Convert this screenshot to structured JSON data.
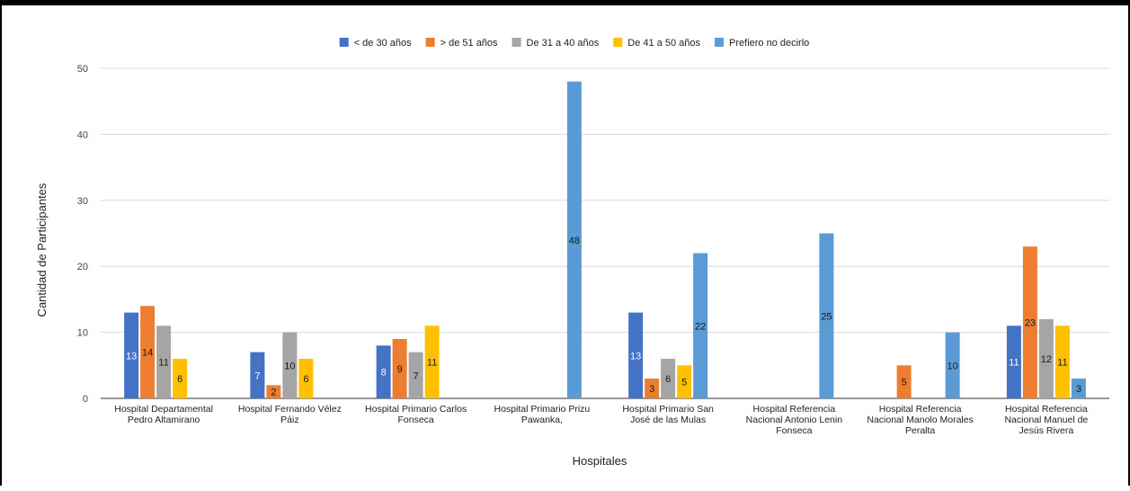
{
  "chart_data": {
    "type": "bar",
    "xlabel": "Hospitales",
    "ylabel": "Cantidad de Participantes",
    "ylim": [
      0,
      50
    ],
    "yticks": [
      0,
      10,
      20,
      30,
      40,
      50
    ],
    "grid": true,
    "legend_position": "top",
    "categories": [
      [
        "Hospital Departamental",
        "Pedro Altamirano"
      ],
      [
        "Hospital Fernando Vélez",
        "Páiz"
      ],
      [
        "Hospital Primario Carlos",
        "Fonseca"
      ],
      [
        "Hospital Primario Prizu",
        "Pawanka,"
      ],
      [
        "Hospital Primario San",
        "José de las Mulas"
      ],
      [
        "Hospital Referencia",
        "Nacional Antonio Lenin",
        "Fonseca"
      ],
      [
        "Hospital Referencia",
        "Nacional Manolo Morales",
        "Peralta"
      ],
      [
        "Hospital Referencia",
        "Nacional Manuel de",
        "Jesús Rivera"
      ]
    ],
    "series": [
      {
        "name": "< de 30 años",
        "color": "#4472c4",
        "label_color": "#ffffff",
        "values": [
          13,
          7,
          8,
          null,
          13,
          null,
          null,
          11
        ]
      },
      {
        "name": "> de 51 años",
        "color": "#ed7d31",
        "label_color": "#1a1a1a",
        "values": [
          14,
          2,
          9,
          null,
          3,
          null,
          5,
          23
        ]
      },
      {
        "name": "De 31 a 40 años",
        "color": "#a5a5a5",
        "label_color": "#1a1a1a",
        "values": [
          11,
          10,
          7,
          null,
          6,
          null,
          null,
          12
        ]
      },
      {
        "name": "De 41 a 50 años",
        "color": "#ffc000",
        "label_color": "#1a1a1a",
        "values": [
          6,
          6,
          11,
          null,
          5,
          null,
          null,
          11
        ]
      },
      {
        "name": "Prefiero no decirlo",
        "color": "#5b9bd5",
        "label_color": "#1a1a1a",
        "values": [
          null,
          null,
          null,
          48,
          22,
          25,
          10,
          3
        ]
      }
    ]
  }
}
